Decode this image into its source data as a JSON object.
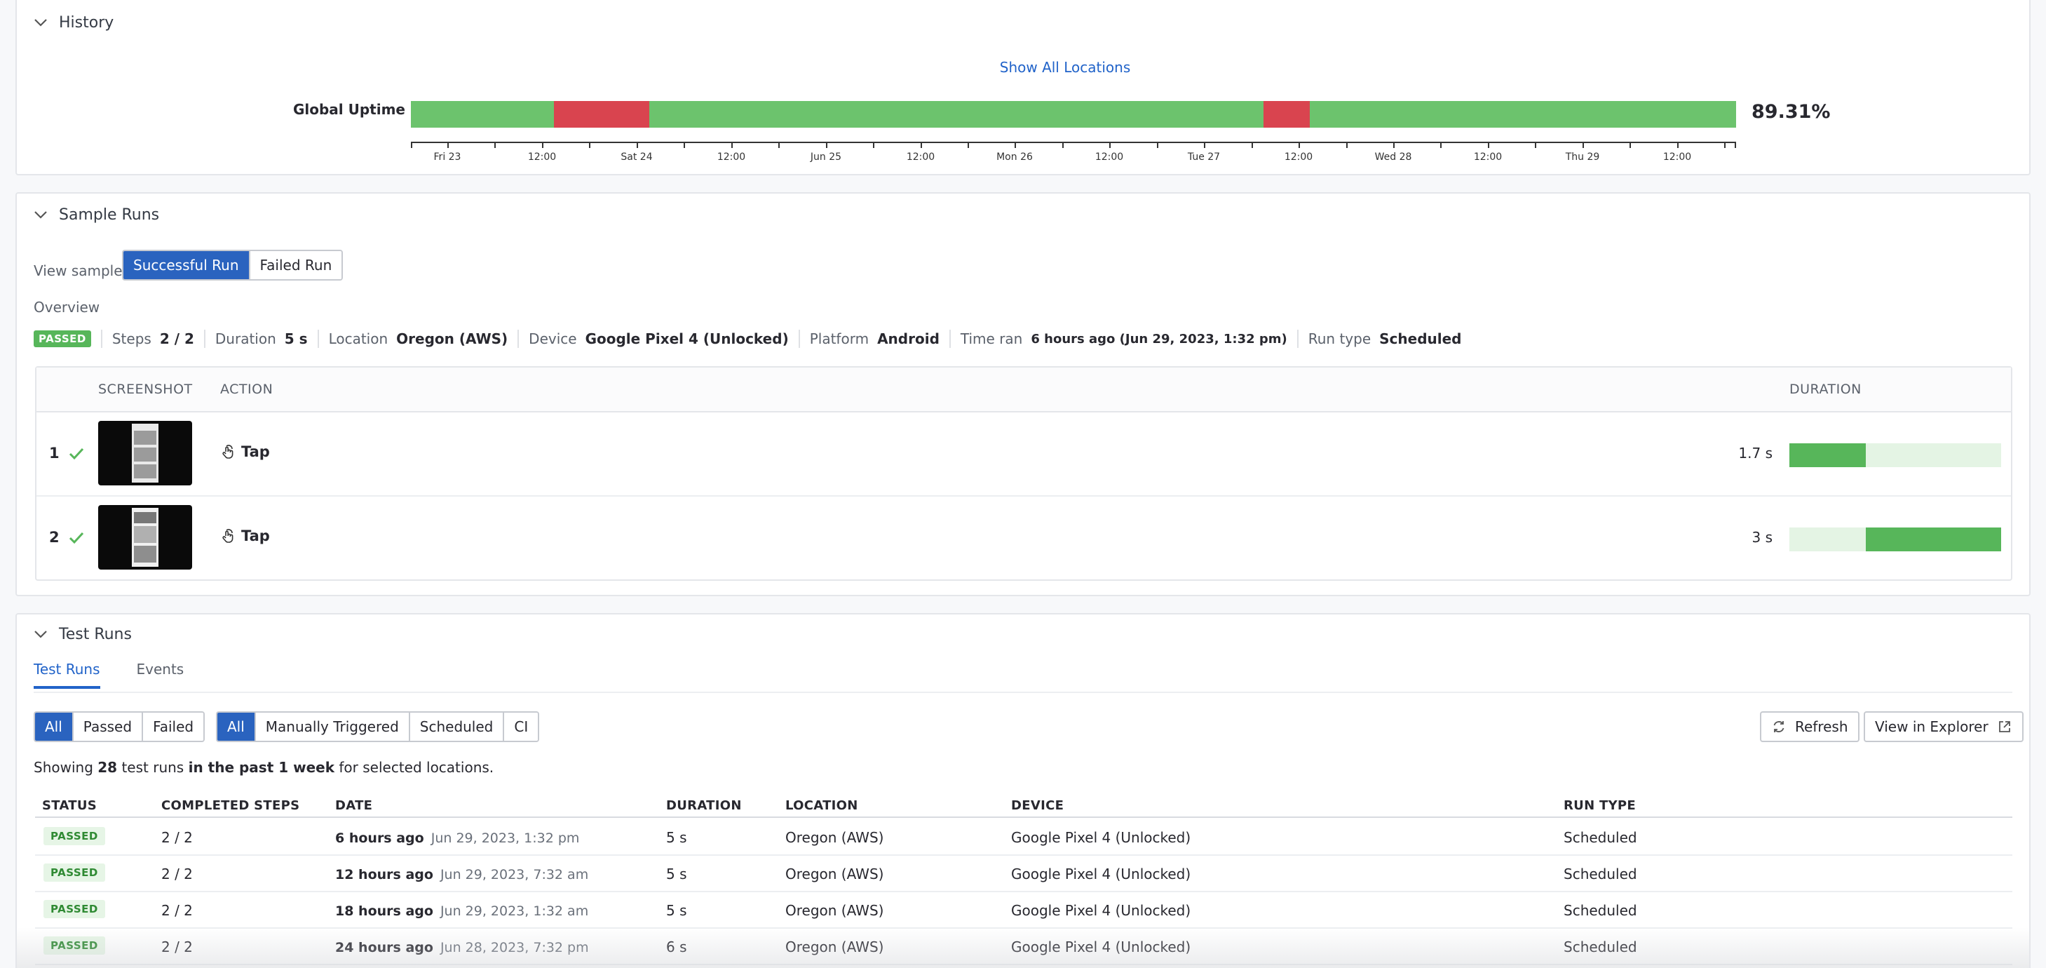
{
  "history": {
    "title": "History",
    "show_all_link": "Show All Locations",
    "uptime_label": "Global Uptime",
    "uptime_percent": "89.31%",
    "colors": {
      "up": "#6cc36d",
      "down": "#d9444f"
    },
    "axis_ticks": [
      "Fri 23",
      "12:00",
      "Sat 24",
      "12:00",
      "Jun 25",
      "12:00",
      "Mon 26",
      "12:00",
      "Tue 27",
      "12:00",
      "Wed 28",
      "12:00",
      "Thu 29",
      "12:00"
    ]
  },
  "samples": {
    "title": "Sample Runs",
    "view_sample_label": "View sample",
    "toggle": [
      "Successful Run",
      "Failed Run"
    ],
    "overview_title": "Overview",
    "overview": {
      "badge": "PASSED",
      "steps_label": "Steps",
      "steps_value": "2 / 2",
      "duration_label": "Duration",
      "duration_value": "5 s",
      "location_label": "Location",
      "location_value": "Oregon (AWS)",
      "device_label": "Device",
      "device_value": "Google Pixel 4 (Unlocked)",
      "platform_label": "Platform",
      "platform_value": "Android",
      "time_label": "Time ran",
      "time_value": "6 hours ago (Jun 29, 2023, 1:32 pm)",
      "run_type_label": "Run type",
      "run_type_value": "Scheduled"
    },
    "table_headers": {
      "screenshot": "SCREENSHOT",
      "action": "ACTION",
      "duration": "DURATION"
    },
    "steps": [
      {
        "num": "1",
        "action": "Tap",
        "duration": "1.7 s",
        "bar_start": 0.0,
        "bar_fraction": 0.36
      },
      {
        "num": "2",
        "action": "Tap",
        "duration": "3 s",
        "bar_start": 0.36,
        "bar_fraction": 0.64
      }
    ]
  },
  "runs": {
    "title": "Test Runs",
    "tabs": [
      "Test Runs",
      "Events"
    ],
    "status_filter": [
      "All",
      "Passed",
      "Failed"
    ],
    "type_filter": [
      "All",
      "Manually Triggered",
      "Scheduled",
      "CI"
    ],
    "refresh_label": "Refresh",
    "explorer_label": "View in Explorer",
    "showing": {
      "prefix": "Showing",
      "count": "28",
      "middle": "test runs",
      "period": "in the past 1 week",
      "suffix": "for selected locations."
    },
    "headers": {
      "status": "STATUS",
      "steps": "COMPLETED STEPS",
      "date": "DATE",
      "duration": "DURATION",
      "location": "LOCATION",
      "device": "DEVICE",
      "run_type": "RUN TYPE"
    },
    "rows": [
      {
        "status": "PASSED",
        "steps": "2 / 2",
        "date_rel": "6 hours ago",
        "date_abs": "Jun 29, 2023, 1:32 pm",
        "duration": "5 s",
        "location": "Oregon (AWS)",
        "device": "Google Pixel 4 (Unlocked)",
        "run_type": "Scheduled"
      },
      {
        "status": "PASSED",
        "steps": "2 / 2",
        "date_rel": "12 hours ago",
        "date_abs": "Jun 29, 2023, 7:32 am",
        "duration": "5 s",
        "location": "Oregon (AWS)",
        "device": "Google Pixel 4 (Unlocked)",
        "run_type": "Scheduled"
      },
      {
        "status": "PASSED",
        "steps": "2 / 2",
        "date_rel": "18 hours ago",
        "date_abs": "Jun 29, 2023, 1:32 am",
        "duration": "5 s",
        "location": "Oregon (AWS)",
        "device": "Google Pixel 4 (Unlocked)",
        "run_type": "Scheduled"
      },
      {
        "status": "PASSED",
        "steps": "2 / 2",
        "date_rel": "24 hours ago",
        "date_abs": "Jun 28, 2023, 7:32 pm",
        "duration": "6 s",
        "location": "Oregon (AWS)",
        "device": "Google Pixel 4 (Unlocked)",
        "run_type": "Scheduled"
      }
    ]
  }
}
